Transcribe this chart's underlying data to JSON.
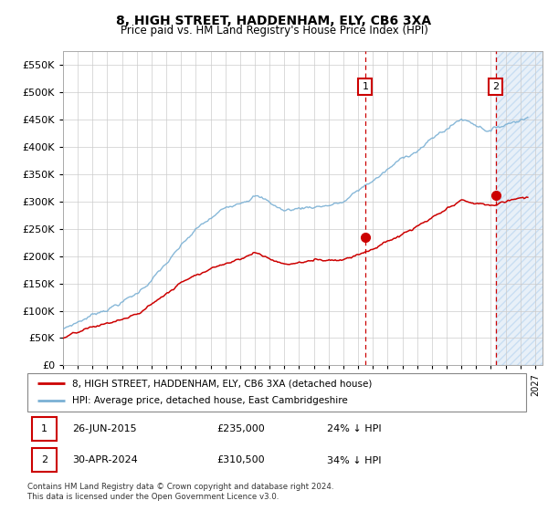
{
  "title": "8, HIGH STREET, HADDENHAM, ELY, CB6 3XA",
  "subtitle": "Price paid vs. HM Land Registry's House Price Index (HPI)",
  "legend_line1": "8, HIGH STREET, HADDENHAM, ELY, CB6 3XA (detached house)",
  "legend_line2": "HPI: Average price, detached house, East Cambridgeshire",
  "annotation1_date": "26-JUN-2015",
  "annotation1_price": "£235,000",
  "annotation1_hpi": "24% ↓ HPI",
  "annotation2_date": "30-APR-2024",
  "annotation2_price": "£310,500",
  "annotation2_hpi": "34% ↓ HPI",
  "footer": "Contains HM Land Registry data © Crown copyright and database right 2024.\nThis data is licensed under the Open Government Licence v3.0.",
  "hpi_color": "#7ab0d4",
  "price_color": "#cc0000",
  "ylim": [
    0,
    575000
  ],
  "yticks": [
    0,
    50000,
    100000,
    150000,
    200000,
    250000,
    300000,
    350000,
    400000,
    450000,
    500000,
    550000
  ],
  "year_start": 1995,
  "year_end": 2027,
  "sale1_year": 2015.48,
  "sale1_value": 235000,
  "sale2_year": 2024.33,
  "sale2_value": 310500
}
